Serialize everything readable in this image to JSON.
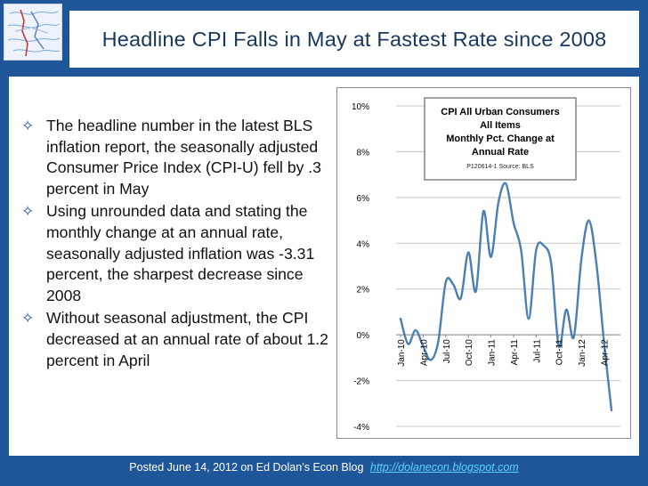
{
  "slide": {
    "title": "Headline CPI Falls in May at Fastest Rate since 2008",
    "bullets": [
      "The headline number in the latest BLS inflation report, the seasonally adjusted Consumer Price Index (CPI-U) fell by .3 percent in May",
      "Using unrounded data and stating the monthly change at an annual rate, seasonally adjusted inflation was -3.31 percent, the sharpest decrease since 2008",
      "Without seasonal adjustment, the CPI decreased at an annual rate of about 1.2 percent in April"
    ],
    "footer_text": "Posted June 14, 2012 on Ed Dolan’s Econ Blog",
    "footer_link": "http://dolanecon.blogspot.com"
  },
  "chart_data": {
    "type": "line",
    "title_lines": [
      "CPI All Urban Consumers",
      "All Items",
      "Monthly Pct. Change at",
      "Annual Rate"
    ],
    "source_note": "P120614-1 Source: BLS",
    "xlabel": "",
    "ylabel": "",
    "ylim": [
      -4,
      10
    ],
    "y_ticks": [
      10,
      8,
      6,
      4,
      2,
      0,
      -2,
      -4
    ],
    "y_tick_labels": [
      "10%",
      "8%",
      "6%",
      "4%",
      "2%",
      "0%",
      "-2%",
      "-4%"
    ],
    "x_tick_labels": [
      "Jan-10",
      "Apr-10",
      "Jul-10",
      "Oct-10",
      "Jan-11",
      "Apr-11",
      "Jul-11",
      "Oct-11",
      "Jan-12",
      "Apr-12"
    ],
    "x_tick_months": [
      "2010-01",
      "2010-04",
      "2010-07",
      "2010-10",
      "2011-01",
      "2011-04",
      "2011-07",
      "2011-10",
      "2012-01",
      "2012-04"
    ],
    "grid": "horizontal",
    "line_color": "#4a7fb5",
    "series": [
      {
        "x": [
          "2010-01",
          "2010-02",
          "2010-03",
          "2010-04",
          "2010-05",
          "2010-06",
          "2010-07",
          "2010-08",
          "2010-09",
          "2010-10",
          "2010-11",
          "2010-12",
          "2011-01",
          "2011-02",
          "2011-03",
          "2011-04",
          "2011-05",
          "2011-06",
          "2011-07",
          "2011-08",
          "2011-09",
          "2011-10",
          "2011-11",
          "2011-12",
          "2012-01",
          "2012-02",
          "2012-03",
          "2012-04",
          "2012-05"
        ],
        "values": [
          0.7,
          -0.4,
          0.2,
          -0.5,
          -1.1,
          -0.3,
          2.3,
          2.2,
          1.6,
          3.6,
          1.9,
          5.4,
          3.4,
          5.8,
          6.6,
          4.9,
          3.7,
          0.7,
          3.7,
          3.9,
          3.1,
          -0.5,
          1.1,
          -0.1,
          3.3,
          5.0,
          3.1,
          -0.3,
          -3.3
        ]
      }
    ]
  }
}
